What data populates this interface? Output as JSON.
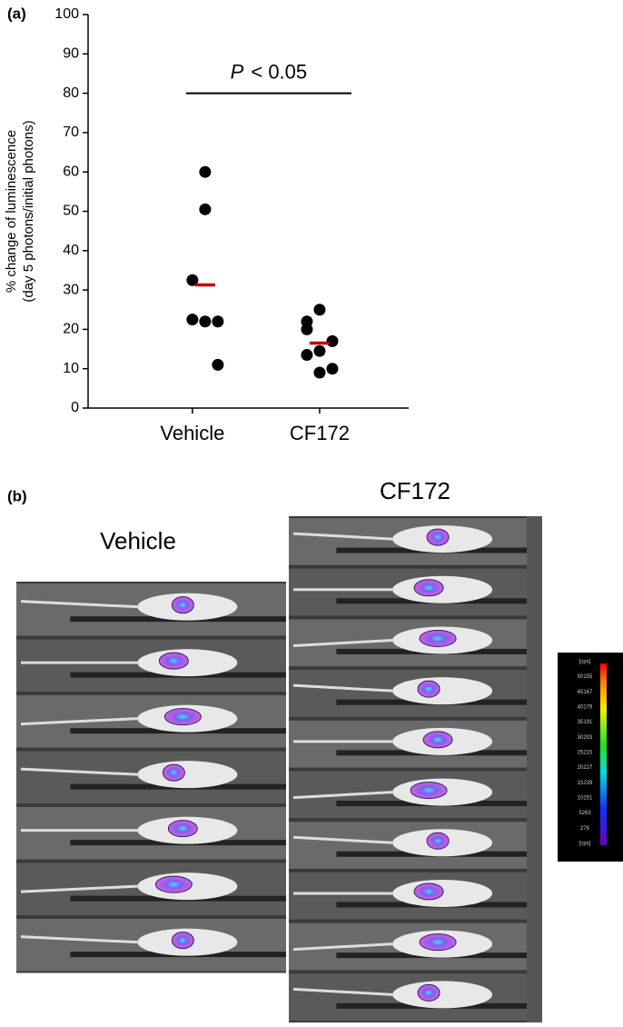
{
  "chart_data": {
    "type": "scatter",
    "panel_label": "(a)",
    "y_label": [
      "% change of luminescence",
      "(day 5 photons/initial photons)"
    ],
    "xlim": [
      0.18,
      2.7
    ],
    "xticks": [
      {
        "value": 1,
        "label": "Vehicle"
      },
      {
        "value": 2,
        "label": "CF172"
      }
    ],
    "ylim": [
      0,
      100
    ],
    "yticks": [
      0,
      10,
      20,
      30,
      40,
      50,
      60,
      70,
      80,
      90,
      100
    ],
    "series": [
      {
        "color": "#000000",
        "x": [
          1.1,
          1.1,
          1.0,
          1.0,
          1.1,
          1.2,
          1.2
        ],
        "values": [
          60,
          50.5,
          32.5,
          22.5,
          22,
          22,
          11
        ]
      },
      {
        "color": "#000000",
        "x": [
          2.0,
          1.9,
          1.9,
          2.1,
          2.0,
          1.9,
          2.1,
          2.0
        ],
        "values": [
          25,
          22,
          20,
          17,
          14.5,
          13.5,
          10,
          9
        ]
      }
    ],
    "means": {
      "color": "#c00000",
      "x": [
        1.1,
        2.0
      ],
      "values": [
        31.3,
        16.5
      ]
    },
    "annotation": {
      "italic": "P",
      "text": "< 0.05",
      "y": 80,
      "x": [
        0.95,
        2.25
      ]
    }
  },
  "panel_b": {
    "panel_label": "(b)",
    "left_title": "Vehicle",
    "right_title": "CF172",
    "colorbar": {
      "labels": [
        "[cps]",
        "50155",
        "45167",
        "40179",
        "35191",
        "30203",
        "25215",
        "20227",
        "15239",
        "10251",
        "5263",
        "276",
        "[cps]"
      ]
    }
  }
}
